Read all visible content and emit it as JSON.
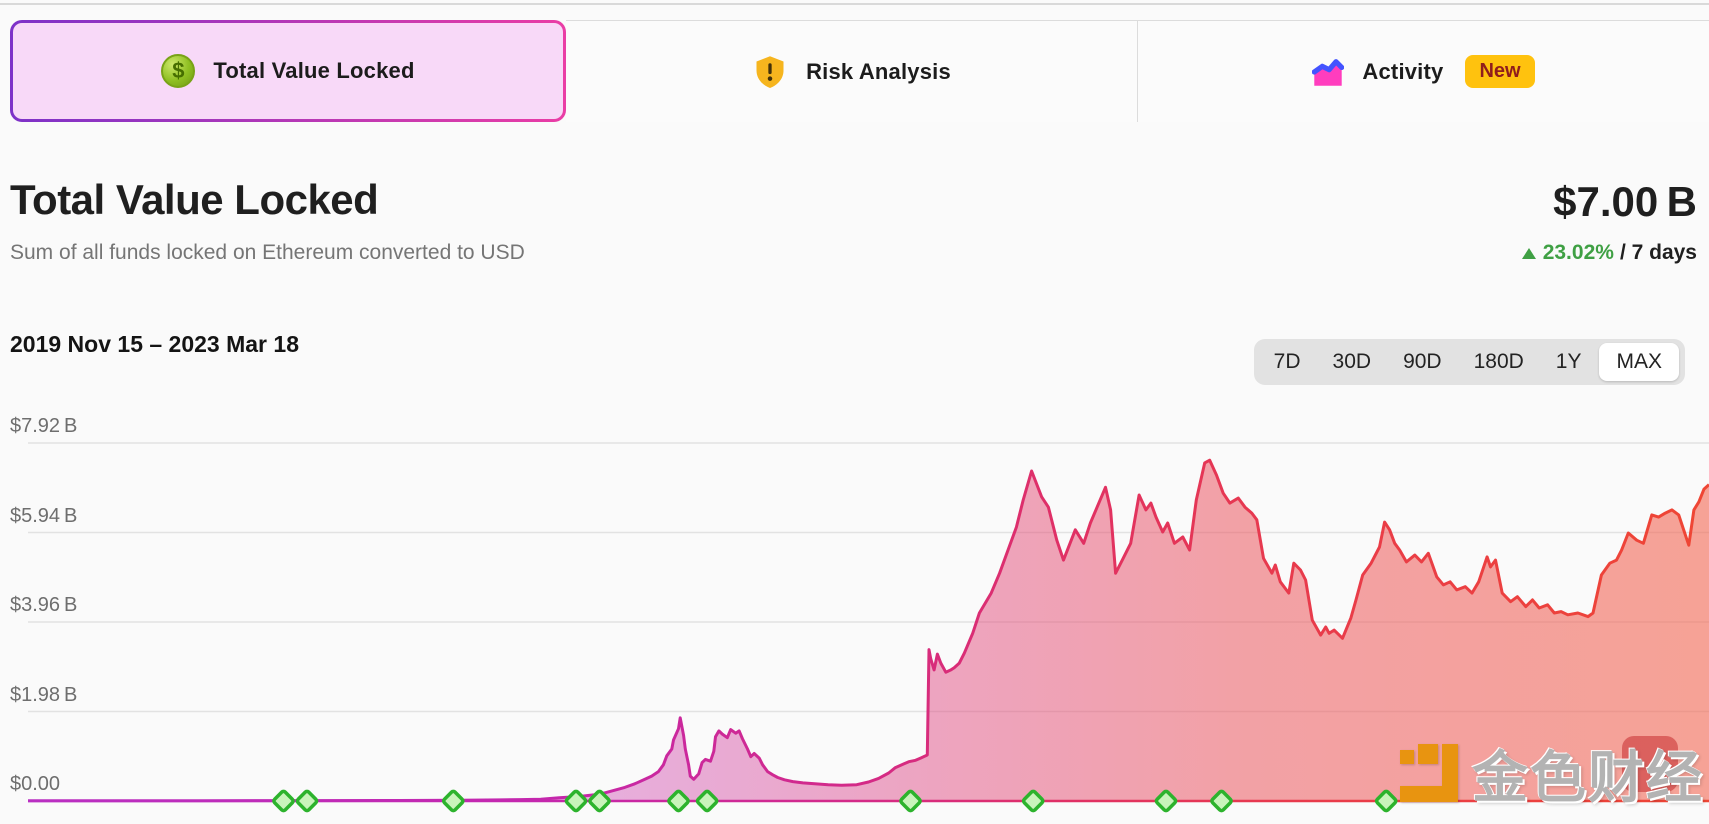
{
  "tabs": [
    {
      "label": "Total Value Locked",
      "icon": "dollar-coin-icon",
      "icon_glyph": "$",
      "selected": true
    },
    {
      "label": "Risk Analysis",
      "icon": "shield-warning-icon",
      "selected": false
    },
    {
      "label": "Activity",
      "icon": "activity-chart-icon",
      "badge": "New",
      "selected": false
    }
  ],
  "header": {
    "title": "Total Value Locked",
    "subtitle": "Sum of all funds locked on Ethereum converted to USD",
    "value": "$7.00 B",
    "change_pct": "23.02%",
    "change_suffix": "/ 7 days",
    "change_direction": "up"
  },
  "toolbar": {
    "date_range": "2019 Nov 15 – 2023 Mar 18",
    "ranges": [
      "7D",
      "30D",
      "90D",
      "180D",
      "1Y",
      "MAX"
    ],
    "selected_range": "MAX"
  },
  "watermark": {
    "text": "金色财经"
  },
  "colors": {
    "page_bg": "#fafafa",
    "selected_tab_bg": "#f8d9f8",
    "tab_border_gradient": [
      "#7d32c8",
      "#ea3da5"
    ],
    "positive_green": "#3fa044",
    "badge_bg": "#ffc20e",
    "range_selector_bg": "#e2e2e2"
  },
  "chart_data": {
    "type": "area",
    "title": "Total Value Locked",
    "unit": "$B",
    "x_start_label": "2019 Nov 15",
    "x_end_label": "2023 Mar 18",
    "ylim": [
      0,
      7.92
    ],
    "y_ticks": [
      "$7.92 B",
      "$5.94 B",
      "$3.96 B",
      "$1.98 B",
      "$0.00"
    ],
    "y_tick_values": [
      7.92,
      5.94,
      3.96,
      1.98,
      0
    ],
    "grid": true,
    "legend": false,
    "series": [
      {
        "name": "TVL",
        "x_pct": [
          0,
          4.3,
          10.2,
          16.2,
          22.1,
          25.7,
          28.1,
          29.3,
          30.5,
          31.6,
          32.8,
          33.7,
          34.3,
          34.9,
          35.5,
          36.1,
          36.7,
          37.1,
          37.5,
          37.8,
          38.0,
          38.3,
          38.4,
          38.7,
          38.8,
          39.0,
          39.1,
          39.3,
          39.4,
          39.6,
          39.9,
          40.1,
          40.3,
          40.6,
          40.8,
          40.9,
          41.1,
          41.3,
          41.6,
          41.8,
          42.1,
          42.3,
          42.5,
          42.8,
          43.0,
          43.2,
          43.5,
          43.7,
          44.0,
          44.3,
          44.6,
          45.0,
          45.5,
          46.1,
          46.8,
          47.6,
          48.4,
          49.3,
          50.0,
          50.6,
          51.2,
          51.6,
          52.1,
          52.4,
          52.8,
          53.1,
          53.4,
          53.5,
          53.6,
          53.7,
          53.9,
          54.1,
          54.3,
          54.6,
          54.9,
          55.1,
          55.4,
          55.7,
          56.2,
          56.6,
          57.3,
          57.8,
          58.3,
          58.8,
          59.2,
          59.7,
          60.3,
          60.7,
          61.2,
          61.6,
          62.3,
          62.8,
          63.2,
          64.1,
          64.4,
          64.7,
          65.1,
          65.6,
          66.1,
          66.5,
          66.8,
          67.1,
          67.5,
          67.8,
          68.2,
          68.7,
          69.1,
          69.5,
          70.0,
          70.3,
          70.7,
          71.1,
          71.5,
          72.0,
          72.4,
          72.8,
          73.1,
          73.5,
          74.0,
          74.2,
          74.5,
          75.0,
          75.3,
          75.7,
          76.0,
          76.4,
          76.9,
          77.2,
          77.4,
          77.7,
          78.2,
          78.7,
          79.0,
          79.4,
          79.9,
          80.4,
          80.7,
          81.0,
          81.3,
          81.6,
          82.0,
          82.5,
          82.9,
          83.3,
          83.8,
          84.2,
          84.6,
          85.0,
          85.5,
          85.9,
          86.3,
          86.8,
          87.0,
          87.3,
          87.7,
          88.2,
          88.6,
          89.1,
          89.5,
          89.9,
          90.4,
          90.8,
          91.2,
          91.6,
          92.2,
          92.8,
          93.1,
          93.6,
          94.1,
          94.5,
          94.8,
          95.2,
          95.7,
          96.1,
          96.6,
          97.0,
          97.4,
          97.8,
          98.2,
          98.7,
          98.8,
          99.1,
          99.4,
          99.7,
          100.0
        ],
        "values": [
          0.004,
          0.005,
          0.006,
          0.008,
          0.012,
          0.018,
          0.025,
          0.032,
          0.04,
          0.07,
          0.1,
          0.14,
          0.18,
          0.24,
          0.3,
          0.38,
          0.48,
          0.55,
          0.65,
          0.8,
          1.0,
          1.15,
          1.35,
          1.6,
          1.84,
          1.45,
          1.15,
          0.8,
          0.55,
          0.48,
          0.6,
          0.85,
          0.92,
          0.88,
          1.1,
          1.42,
          1.55,
          1.48,
          1.4,
          1.58,
          1.5,
          1.55,
          1.38,
          1.15,
          0.98,
          1.05,
          0.95,
          0.8,
          0.65,
          0.58,
          0.52,
          0.47,
          0.43,
          0.4,
          0.38,
          0.36,
          0.35,
          0.36,
          0.42,
          0.5,
          0.62,
          0.74,
          0.82,
          0.87,
          0.9,
          0.95,
          1.0,
          1.02,
          3.35,
          3.15,
          2.9,
          3.25,
          3.05,
          2.85,
          2.9,
          2.95,
          3.05,
          3.27,
          3.71,
          4.16,
          4.6,
          5.04,
          5.55,
          6.06,
          6.66,
          7.3,
          6.73,
          6.5,
          5.77,
          5.33,
          6.0,
          5.7,
          6.15,
          6.94,
          6.44,
          5.04,
          5.33,
          5.7,
          6.77,
          6.44,
          6.59,
          6.28,
          5.95,
          6.15,
          5.7,
          5.84,
          5.55,
          6.66,
          7.48,
          7.54,
          7.21,
          6.81,
          6.59,
          6.7,
          6.5,
          6.37,
          6.22,
          5.37,
          5.04,
          5.22,
          4.85,
          4.6,
          5.26,
          5.11,
          4.89,
          4.0,
          3.67,
          3.85,
          3.71,
          3.78,
          3.6,
          4.05,
          4.45,
          5.0,
          5.26,
          5.62,
          6.17,
          6.0,
          5.7,
          5.55,
          5.29,
          5.44,
          5.29,
          5.48,
          4.96,
          4.78,
          4.85,
          4.67,
          4.74,
          4.6,
          4.85,
          5.4,
          5.18,
          5.33,
          4.6,
          4.41,
          4.52,
          4.3,
          4.45,
          4.27,
          4.34,
          4.16,
          4.19,
          4.12,
          4.16,
          4.08,
          4.16,
          5.0,
          5.26,
          5.33,
          5.55,
          5.93,
          5.77,
          5.7,
          6.33,
          6.28,
          6.37,
          6.44,
          6.33,
          5.77,
          5.66,
          6.44,
          6.62,
          6.9,
          7.0
        ]
      }
    ],
    "milestones_x_pct": [
      15.2,
      16.6,
      25.3,
      32.6,
      34.0,
      38.7,
      40.4,
      52.5,
      59.8,
      67.7,
      71.0,
      80.8
    ],
    "line_gradient": {
      "offsets": [
        0,
        0.3,
        0.5,
        0.62,
        0.75,
        1
      ],
      "colors": [
        "#b92fc2",
        "#c427ae",
        "#d42a86",
        "#e03064",
        "#e83a4c",
        "#ef4634"
      ]
    },
    "fill_gradient": {
      "offsets": [
        0,
        0.35,
        0.55,
        0.72,
        1
      ],
      "colors": [
        "rgba(186,63,192,0.30)",
        "rgba(203,59,173,0.40)",
        "rgba(224,70,125,0.48)",
        "rgba(236,88,96,0.55)",
        "rgba(243,108,88,0.62)"
      ]
    },
    "grid_color": "#e2e2e2",
    "milestone_fill": "#c9f4bb",
    "milestone_stroke": "#2db32d"
  }
}
